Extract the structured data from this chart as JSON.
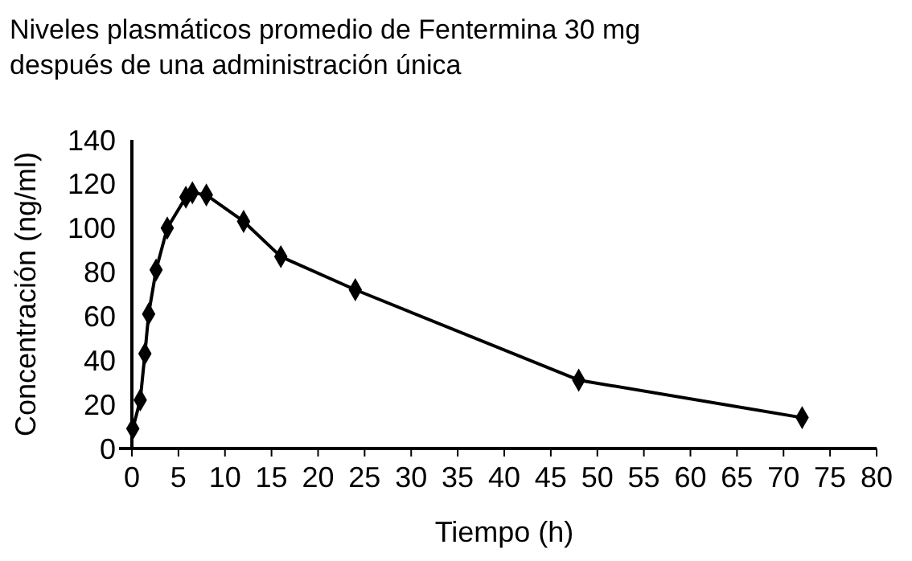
{
  "chart_data": {
    "type": "line",
    "title": "Niveles plasmáticos promedio de Fentermina 30 mg\ndespués de una administración única",
    "xlabel": "Tiempo (h)",
    "ylabel": "Concentración (ng/ml)",
    "x": [
      0.1,
      0.9,
      1.4,
      1.8,
      2.6,
      3.8,
      5.8,
      6.5,
      8,
      12,
      16,
      24,
      48,
      72
    ],
    "series": [
      {
        "color": "#000000",
        "values": [
          9,
          22,
          43,
          61,
          81,
          100,
          114,
          116,
          115,
          103,
          87,
          72,
          31,
          14
        ]
      }
    ],
    "xlim": [
      0,
      80
    ],
    "xticks": [
      0,
      5,
      10,
      15,
      20,
      25,
      30,
      35,
      40,
      45,
      50,
      55,
      60,
      65,
      70,
      75,
      80
    ],
    "ylim": [
      0,
      140
    ],
    "yticks": [
      0,
      20,
      40,
      60,
      80,
      100,
      120,
      140
    ],
    "marker": "diamond",
    "line_style": "solid"
  }
}
